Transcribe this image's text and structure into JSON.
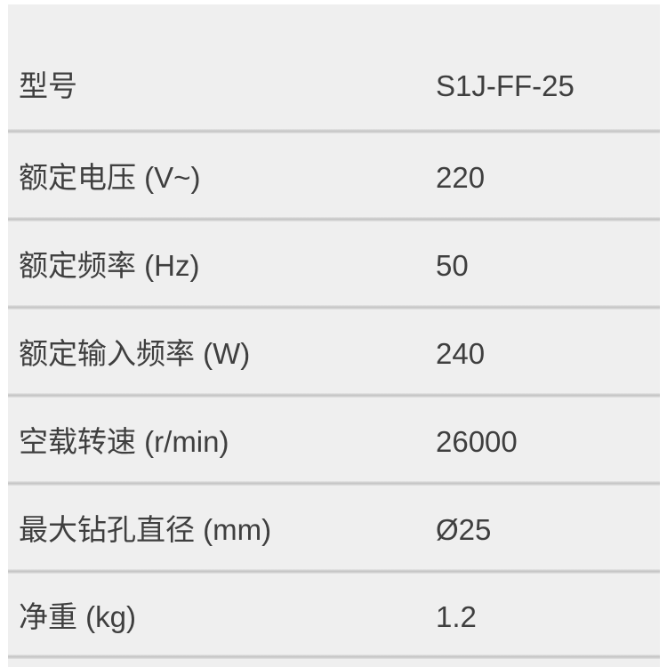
{
  "page": {
    "background_color": "#ffffff",
    "table_background_color": "#efefef",
    "divider_color": "#c4c4c4",
    "text_color": "#3f3f3f"
  },
  "table": {
    "rows": [
      {
        "label": "型号",
        "value": "S1J-FF-25"
      },
      {
        "label": "额定电压 (V~)",
        "value": "220"
      },
      {
        "label": "额定频率 (Hz)",
        "value": "50"
      },
      {
        "label": "额定输入频率 (W)",
        "value": "240"
      },
      {
        "label": "空载转速 (r/min)",
        "value": "26000"
      },
      {
        "label": "最大钻孔直径 (mm)",
        "value": "Ø25"
      },
      {
        "label": "净重 (kg)",
        "value": "1.2"
      }
    ]
  }
}
